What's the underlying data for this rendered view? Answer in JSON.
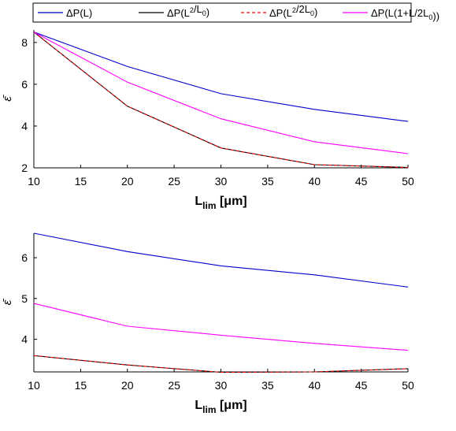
{
  "legend": {
    "entries": [
      {
        "base": "ΔP(L)",
        "sup": "",
        "mid": "",
        "sub": "",
        "tail": "",
        "color": "#0000cc",
        "dash": "solid"
      },
      {
        "base": "ΔP(L",
        "sup": "2",
        "mid": "/L",
        "sub": "0",
        "tail": ")",
        "color": "#000000",
        "dash": "solid"
      },
      {
        "base": "ΔP(L",
        "sup": "2",
        "mid": "/2L",
        "sub": "0",
        "tail": ")",
        "color": "#ff0000",
        "dash": "dashed"
      },
      {
        "base": "ΔP(L(1+L/2L",
        "sup": "",
        "mid": "",
        "sub": "0",
        "tail": "))",
        "color": "#ff00ff",
        "dash": "solid"
      }
    ]
  },
  "chart_data": [
    {
      "type": "line",
      "xlabel_main": "L",
      "xlabel_sub": "lim",
      "xlabel_unit": " [μm]",
      "ylabel": "ε̄",
      "x": [
        10,
        20,
        30,
        40,
        50
      ],
      "xlim": [
        10,
        50
      ],
      "ylim": [
        2,
        8.6
      ],
      "xticks": [
        "10",
        "15",
        "20",
        "25",
        "30",
        "35",
        "40",
        "45",
        "50"
      ],
      "yticks": [
        "2",
        "4",
        "6",
        "8"
      ],
      "series": [
        {
          "values": [
            8.5,
            6.85,
            5.55,
            4.8,
            4.22
          ],
          "color": "#0000cc",
          "dash": "solid"
        },
        {
          "values": [
            8.5,
            4.95,
            2.95,
            2.15,
            2.02
          ],
          "color": "#000000",
          "dash": "solid"
        },
        {
          "values": [
            8.5,
            4.95,
            2.95,
            2.15,
            2.02
          ],
          "color": "#ff0000",
          "dash": "dashed"
        },
        {
          "values": [
            8.5,
            6.1,
            4.35,
            3.25,
            2.68
          ],
          "color": "#ff00ff",
          "dash": "solid"
        }
      ]
    },
    {
      "type": "line",
      "xlabel_main": "L",
      "xlabel_sub": "lim",
      "xlabel_unit": " [μm]",
      "ylabel": "ε̄",
      "x": [
        10,
        20,
        30,
        40,
        50
      ],
      "xlim": [
        10,
        50
      ],
      "ylim": [
        3.2,
        6.6
      ],
      "xticks": [
        "10",
        "15",
        "20",
        "25",
        "30",
        "35",
        "40",
        "45",
        "50"
      ],
      "yticks": [
        "4",
        "5",
        "6"
      ],
      "series": [
        {
          "values": [
            6.6,
            6.15,
            5.8,
            5.58,
            5.28
          ],
          "color": "#0000cc",
          "dash": "solid"
        },
        {
          "values": [
            3.6,
            3.37,
            3.19,
            3.2,
            3.28
          ],
          "color": "#000000",
          "dash": "solid"
        },
        {
          "values": [
            3.6,
            3.37,
            3.19,
            3.2,
            3.28
          ],
          "color": "#ff0000",
          "dash": "dashed"
        },
        {
          "values": [
            4.88,
            4.32,
            4.1,
            3.9,
            3.73
          ],
          "color": "#ff00ff",
          "dash": "solid"
        }
      ]
    }
  ]
}
